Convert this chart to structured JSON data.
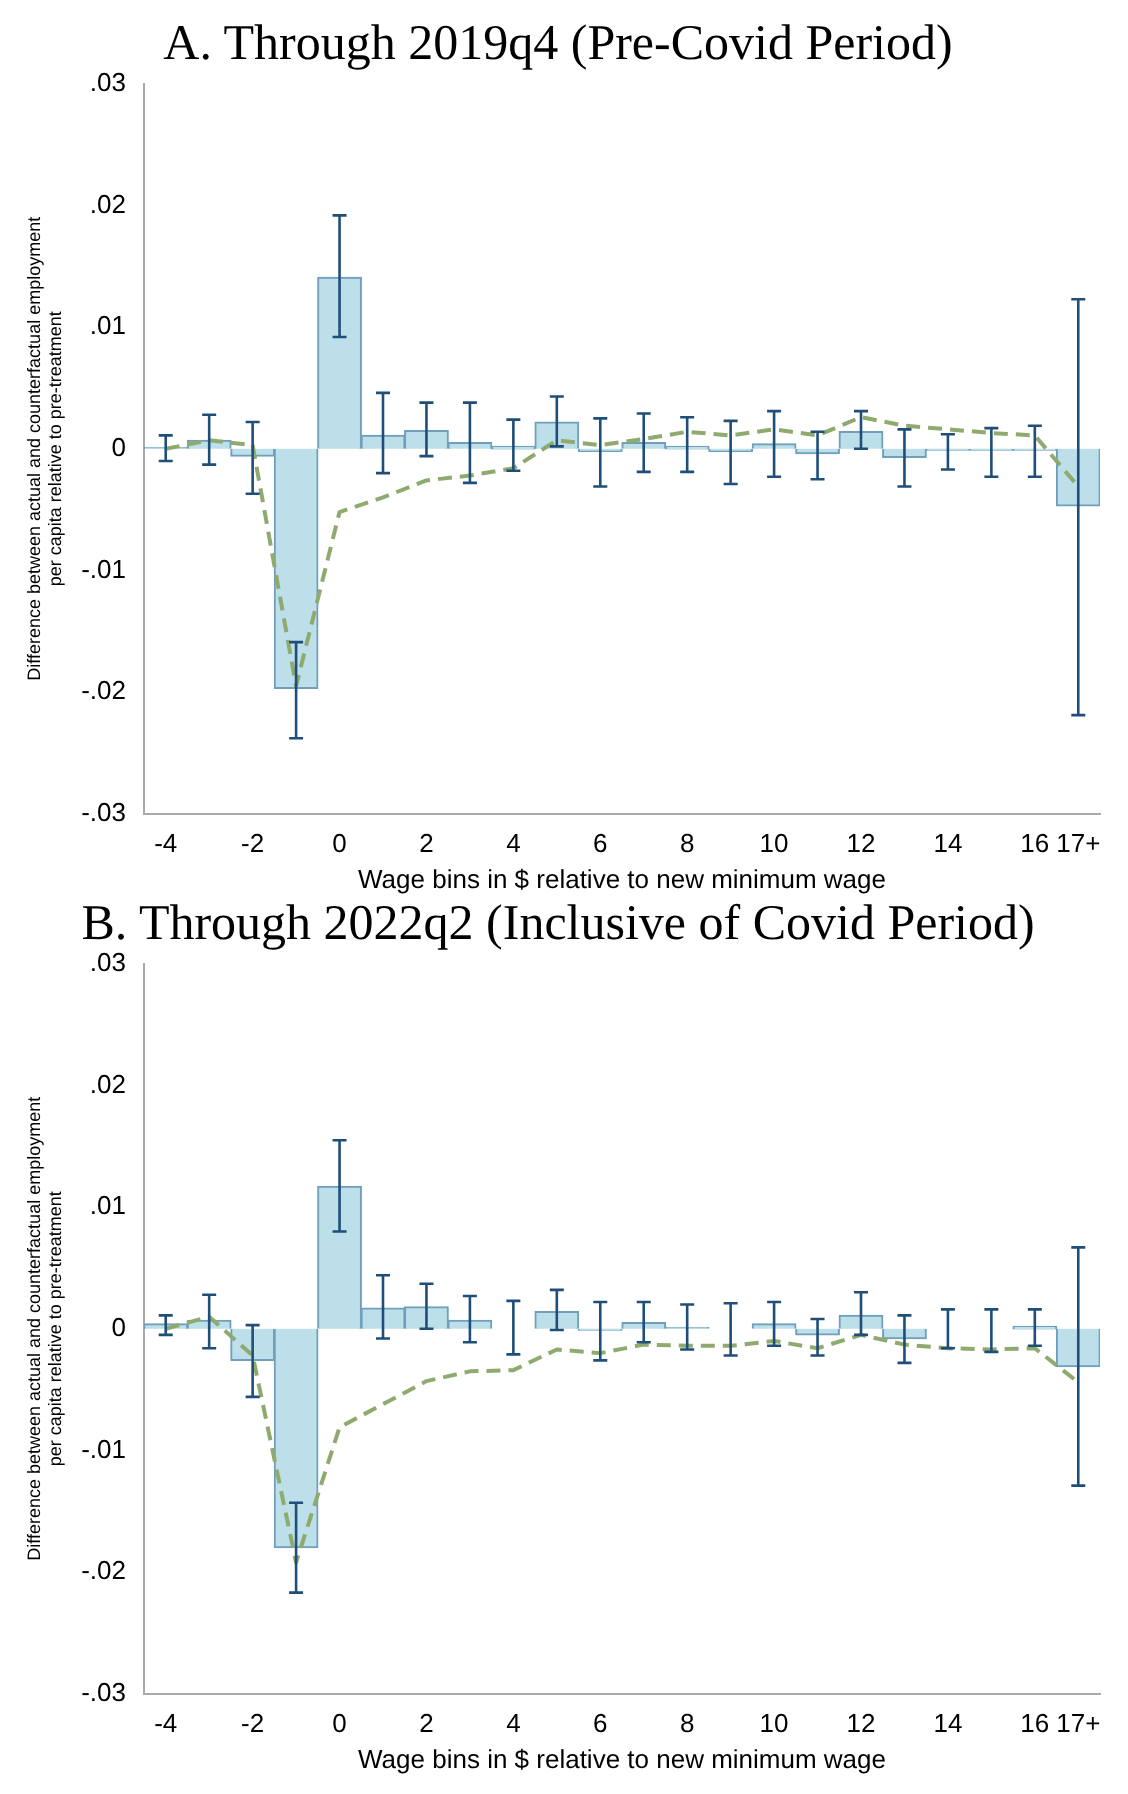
{
  "chart_data": [
    {
      "type": "bar",
      "title": "A. Through 2019q4 (Pre-Covid Period)",
      "xlabel": "Wage bins in $ relative to new minimum wage",
      "ylabel": "Difference between actual and counterfactual employment\nper capita relative to pre-treatment",
      "categories": [
        "-4",
        null,
        "-2",
        null,
        "0",
        null,
        "2",
        null,
        "4",
        null,
        "6",
        null,
        "8",
        null,
        "10",
        null,
        "12",
        null,
        "14",
        null,
        "16",
        "17+"
      ],
      "series": [
        {
          "color": "#bddfea",
          "values": [
            0.0001,
            0.0007,
            -0.0006,
            -0.0197,
            0.0141,
            0.0011,
            0.0015,
            0.0005,
            0.0002,
            0.0022,
            -0.0002,
            0.0005,
            0.0002,
            -0.0002,
            0.0004,
            -0.0004,
            0.0014,
            -0.0007,
            -0.0001,
            -0.0001,
            -0.0001,
            -0.0047
          ],
          "errors": [
            [
              -0.001,
              0.0011
            ],
            [
              -0.0013,
              0.0028
            ],
            [
              -0.0037,
              0.0022
            ],
            [
              -0.0238,
              -0.0159
            ],
            [
              0.0092,
              0.0192
            ],
            [
              -0.002,
              0.0046
            ],
            [
              -0.0006,
              0.0038
            ],
            [
              -0.0028,
              0.0038
            ],
            [
              -0.0018,
              0.0024
            ],
            [
              0.0002,
              0.0043
            ],
            [
              -0.0031,
              0.0025
            ],
            [
              -0.0019,
              0.0029
            ],
            [
              -0.0019,
              0.0026
            ],
            [
              -0.0029,
              0.0023
            ],
            [
              -0.0023,
              0.0031
            ],
            [
              -0.0025,
              0.0014
            ],
            [
              0,
              0.0031
            ],
            [
              -0.0031,
              0.0016
            ],
            [
              -0.0017,
              0.0012
            ],
            [
              -0.0023,
              0.0017
            ],
            [
              -0.0023,
              0.0019
            ],
            [
              -0.0219,
              0.0123
            ]
          ]
        },
        {
          "type": "line",
          "color": "#8faa6e",
          "line_style": "dashed",
          "marker": "none",
          "values": [
            0,
            0.0007,
            0.0003,
            -0.0195,
            -0.0052,
            -0.004,
            -0.0026,
            -0.0022,
            -0.0016,
            0.0007,
            0.0003,
            0.0008,
            0.0014,
            0.0011,
            0.0016,
            0.0011,
            0.0026,
            0.0019,
            0.0016,
            0.0013,
            0.0011,
            -0.0031
          ]
        }
      ],
      "ylim": [
        -0.03,
        0.03
      ],
      "yticks": [
        {
          "value": -0.03,
          "label": "-.03"
        },
        {
          "value": -0.02,
          "label": "-.02"
        },
        {
          "value": -0.01,
          "label": "-.01"
        },
        0,
        {
          "value": 0.01,
          "label": ".01"
        },
        {
          "value": 0.02,
          "label": ".02"
        },
        {
          "value": 0.03,
          "label": ".03"
        }
      ],
      "grid": false,
      "legend": false
    },
    {
      "type": "bar",
      "title": "B. Through 2022q2 (Inclusive of Covid Period)",
      "xlabel": "Wage bins in $ relative to new minimum wage",
      "ylabel": "Difference between actual and counterfactual employment\nper capita relative to pre-treatment",
      "categories": [
        "-4",
        null,
        "-2",
        null,
        "0",
        null,
        "2",
        null,
        "4",
        null,
        "6",
        null,
        "8",
        null,
        "10",
        null,
        "12",
        null,
        "14",
        null,
        "16",
        "17+"
      ],
      "series": [
        {
          "color": "#bddfea",
          "values": [
            0.0004,
            0.0007,
            -0.0026,
            -0.018,
            0.0117,
            0.0017,
            0.0018,
            0.0007,
            0,
            0.0014,
            -0.0001,
            0.0005,
            0.0001,
            0,
            0.0004,
            -0.0005,
            0.0011,
            -0.0008,
            0,
            0,
            0.0002,
            -0.0031
          ],
          "errors": [
            [
              -0.0005,
              0.0011
            ],
            [
              -0.0016,
              0.0028
            ],
            [
              -0.0056,
              0.0003
            ],
            [
              -0.0217,
              -0.0143
            ],
            [
              0.008,
              0.0155
            ],
            [
              -0.0008,
              0.0044
            ],
            [
              0,
              0.0037
            ],
            [
              -0.0011,
              0.0027
            ],
            [
              -0.0021,
              0.0023
            ],
            [
              -0.0001,
              0.0032
            ],
            [
              -0.0026,
              0.0022
            ],
            [
              -0.0011,
              0.0022
            ],
            [
              -0.0017,
              0.002
            ],
            [
              -0.0022,
              0.0021
            ],
            [
              -0.0014,
              0.0022
            ],
            [
              -0.0022,
              0.0008
            ],
            [
              -0.0005,
              0.003
            ],
            [
              -0.0028,
              0.0011
            ],
            [
              -0.0016,
              0.0016
            ],
            [
              -0.0019,
              0.0016
            ],
            [
              -0.0014,
              0.0016
            ],
            [
              -0.0129,
              0.0067
            ]
          ]
        },
        {
          "type": "line",
          "color": "#8faa6e",
          "line_style": "dashed",
          "marker": "none",
          "values": [
            0,
            0.001,
            -0.0022,
            -0.0192,
            -0.0081,
            -0.0062,
            -0.0043,
            -0.0035,
            -0.0034,
            -0.0017,
            -0.002,
            -0.0013,
            -0.0014,
            -0.0014,
            -0.001,
            -0.0016,
            -0.0005,
            -0.0013,
            -0.0016,
            -0.0017,
            -0.0016,
            -0.0044
          ]
        }
      ],
      "ylim": [
        -0.03,
        0.03
      ],
      "yticks": [
        {
          "value": -0.03,
          "label": "-.03"
        },
        {
          "value": -0.02,
          "label": "-.02"
        },
        {
          "value": -0.01,
          "label": "-.01"
        },
        0,
        {
          "value": 0.01,
          "label": ".01"
        },
        {
          "value": 0.02,
          "label": ".02"
        },
        {
          "value": 0.03,
          "label": ".03"
        }
      ],
      "grid": false,
      "legend": false
    }
  ]
}
